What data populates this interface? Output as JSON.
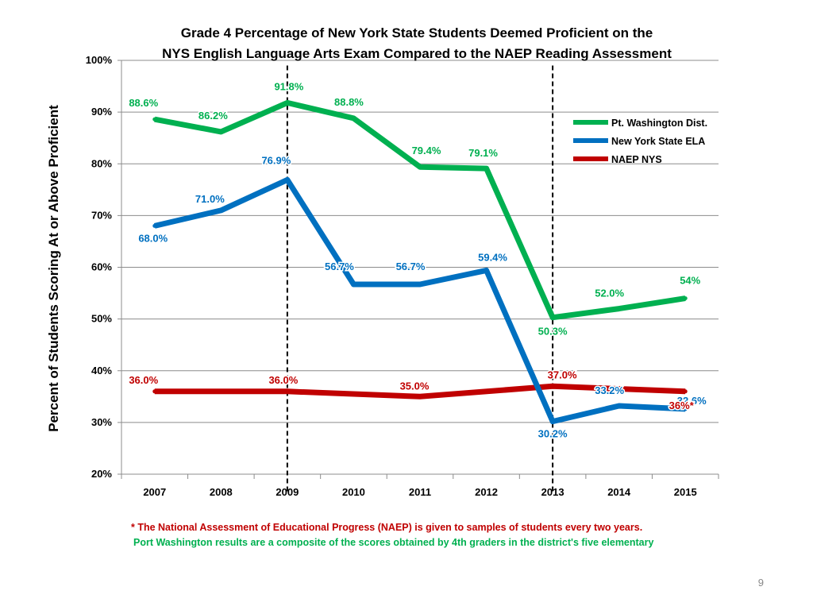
{
  "chart_data": {
    "type": "line",
    "title_lines": [
      "Grade 4 Percentage of New York State Students Deemed Proficient on the",
      "NYS English Language Arts Exam Compared to the NAEP Reading Assessment"
    ],
    "ylabel": "Percent of Students Scoring At or Above Proficient",
    "xlabel": "",
    "ylim": [
      20,
      100
    ],
    "ytick_values": [
      20,
      30,
      40,
      50,
      60,
      70,
      80,
      90,
      100
    ],
    "ytick_labels": [
      "20%",
      "30%",
      "40%",
      "50%",
      "60%",
      "70%",
      "80%",
      "90%",
      "100%"
    ],
    "categories": [
      "2007",
      "2008",
      "2009",
      "2010",
      "2011",
      "2012",
      "2013",
      "2014",
      "2015"
    ],
    "reference_lines": [
      "2009",
      "2013"
    ],
    "grid": true,
    "legend_position": "top-right",
    "series": [
      {
        "name": "Pt. Washington Dist.",
        "color": "#00b050",
        "values": [
          88.6,
          86.2,
          91.8,
          88.8,
          79.4,
          79.1,
          50.3,
          52.0,
          54.0
        ],
        "labels": [
          "88.6%",
          "86.2%",
          "91.8%",
          "88.8%",
          "79.4%",
          "79.1%",
          "50.3%",
          "52.0%",
          "54%"
        ]
      },
      {
        "name": "New York State ELA",
        "color": "#0070c0",
        "values": [
          68.0,
          71.0,
          76.9,
          56.7,
          56.7,
          59.4,
          30.2,
          33.2,
          32.6
        ],
        "labels": [
          "68.0%",
          "71.0%",
          "76.9%",
          "56.7%",
          "56.7%",
          "59.4%",
          "30.2%",
          "33.2%",
          "32.6%"
        ]
      },
      {
        "name": "NAEP NYS",
        "color": "#c00000",
        "values": [
          36.0,
          null,
          36.0,
          null,
          35.0,
          null,
          37.0,
          null,
          36.0
        ],
        "labels": [
          "36.0%",
          "",
          "36.0%",
          "",
          "35.0%",
          "",
          "37.0%",
          "",
          "36%*"
        ]
      }
    ]
  },
  "footnotes": {
    "naep": "* The National Assessment of Educational Progress (NAEP) is given to samples of students every two years.",
    "district": "Port Washington results are a composite of the scores obtained by 4th graders in the district's five elementary"
  },
  "colors": {
    "naep_note": "#c00000",
    "district_note": "#00b050"
  },
  "page_number": "9"
}
